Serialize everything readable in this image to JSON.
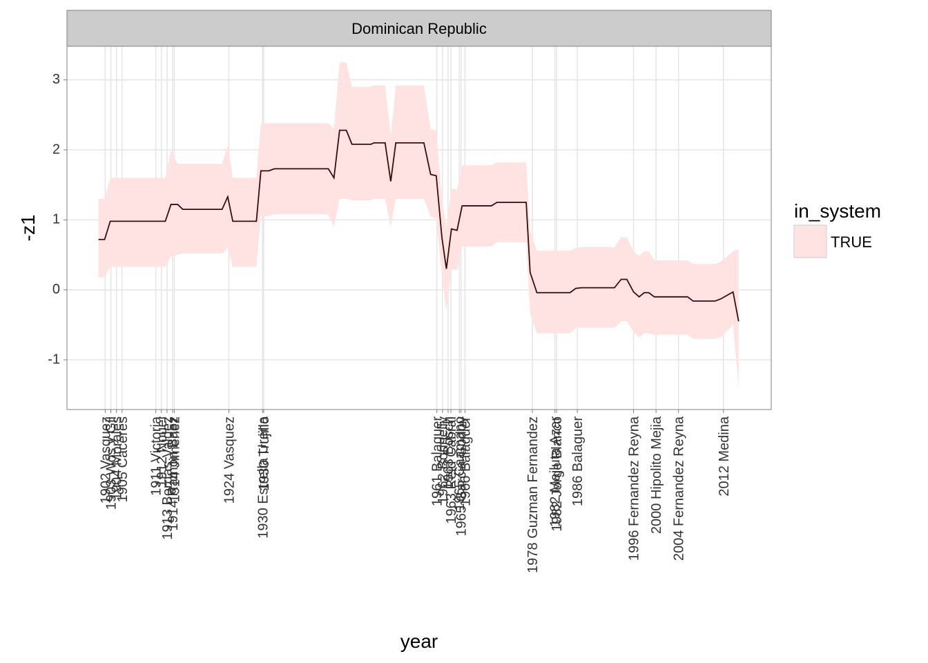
{
  "chart_data": {
    "type": "line",
    "strip": "Dominican Republic",
    "xlabel": "year",
    "ylabel": "-z1",
    "legend_title": "in_system",
    "grid": true,
    "xlim": [
      1895.2,
      2020.5
    ],
    "ylim": [
      -1.71,
      3.48
    ],
    "yticks": [
      -1,
      0,
      1,
      2,
      3
    ],
    "xticks": [
      {
        "value": 1902,
        "label": "1902 Vasquez"
      },
      {
        "value": 1903,
        "label": "1903 Wos y Gil"
      },
      {
        "value": 1904,
        "label": "1904 Morales"
      },
      {
        "value": 1905,
        "label": "1905 Caceres"
      },
      {
        "value": 1911,
        "label": "1911 Victoria"
      },
      {
        "value": 1912,
        "label": "1912 Nouel"
      },
      {
        "value": 1913,
        "label": "1913 Bordas Valdez"
      },
      {
        "value": 1914,
        "label": "1914 Ramon Baez"
      },
      {
        "value": 1914.3,
        "label": "1914 Jimenez"
      },
      {
        "value": 1924,
        "label": "1924 Vasquez"
      },
      {
        "value": 1930,
        "label": "1930 Estrella Urena"
      },
      {
        "value": 1930.2,
        "label": "1930 Trujillo"
      },
      {
        "value": 1961,
        "label": "1961 Balaguer"
      },
      {
        "value": 1962,
        "label": "1962 Bonnelly"
      },
      {
        "value": 1963,
        "label": "1963 Bosch"
      },
      {
        "value": 1963.5,
        "label": "1963 Reid Cabral"
      },
      {
        "value": 1965,
        "label": "1965 Caamano"
      },
      {
        "value": 1965.3,
        "label": "1965 Garcia Godoy"
      },
      {
        "value": 1966,
        "label": "1966 Balaguer"
      },
      {
        "value": 1978,
        "label": "1978 Guzman Fernandez"
      },
      {
        "value": 1982,
        "label": "1982 Majluta Azar"
      },
      {
        "value": 1982.3,
        "label": "1982 Jorge Blanco"
      },
      {
        "value": 1986,
        "label": "1986 Balaguer"
      },
      {
        "value": 1996,
        "label": "1996 Fernandez Reyna"
      },
      {
        "value": 2000,
        "label": "2000 Hipolito Mejia"
      },
      {
        "value": 2004,
        "label": "2004 Fernandez Reyna"
      },
      {
        "value": 2012,
        "label": "2012 Medina"
      }
    ],
    "x": [
      1900.8,
      1901.9,
      1902.9,
      1912.7,
      1913.7,
      1914.9,
      1915.8,
      1922.8,
      1923.8,
      1924.7,
      1928.9,
      1929.7,
      1931.1,
      1932.1,
      1941.7,
      1942.7,
      1943.7,
      1944.9,
      1945.9,
      1949.3,
      1949.8,
      1951.8,
      1952.8,
      1953.7,
      1958.7,
      1959.9,
      1960.9,
      1961.9,
      1962.7,
      1963.6,
      1964.6,
      1965.5,
      1970.7,
      1971.7,
      1976.9,
      1977.6,
      1978.8,
      1984.7,
      1985.7,
      1986.7,
      1992.6,
      1993.8,
      1994.8,
      1996.0,
      1997.0,
      1997.9,
      1998.7,
      1999.7,
      2005.6,
      2006.6,
      2010.5,
      2011.5,
      2013.7,
      2014.7
    ],
    "series": [
      {
        "name": "TRUE",
        "color": "#3a0a0a",
        "fill": "#ffe3e3",
        "values": [
          0.72,
          0.72,
          0.98,
          0.98,
          1.22,
          1.22,
          1.15,
          1.15,
          1.33,
          0.98,
          0.98,
          1.7,
          1.7,
          1.73,
          1.73,
          1.6,
          2.28,
          2.28,
          2.08,
          2.08,
          2.1,
          2.1,
          1.55,
          2.1,
          2.1,
          1.65,
          1.63,
          0.75,
          0.3,
          0.87,
          0.85,
          1.2,
          1.2,
          1.25,
          1.25,
          0.25,
          -0.04,
          -0.04,
          0.02,
          0.03,
          0.03,
          0.15,
          0.15,
          -0.03,
          -0.1,
          -0.04,
          -0.04,
          -0.1,
          -0.1,
          -0.16,
          -0.16,
          -0.13,
          -0.03,
          -0.45
        ],
        "lower": [
          0.18,
          0.18,
          0.33,
          0.33,
          0.48,
          0.5,
          0.52,
          0.52,
          0.6,
          0.33,
          0.33,
          1.05,
          1.05,
          1.08,
          1.08,
          0.9,
          1.3,
          1.3,
          1.28,
          1.28,
          1.3,
          1.3,
          0.9,
          1.3,
          1.3,
          1.05,
          1.02,
          0.2,
          -0.3,
          0.3,
          0.28,
          0.62,
          0.62,
          0.68,
          0.68,
          -0.35,
          -0.62,
          -0.62,
          -0.55,
          -0.54,
          -0.54,
          -0.45,
          -0.45,
          -0.6,
          -0.68,
          -0.62,
          -0.62,
          -0.64,
          -0.64,
          -0.7,
          -0.7,
          -0.68,
          -0.5,
          -1.38
        ],
        "upper": [
          1.3,
          1.3,
          1.6,
          1.6,
          2.0,
          1.8,
          1.8,
          1.8,
          2.07,
          1.6,
          1.6,
          2.38,
          2.38,
          2.38,
          2.38,
          2.3,
          3.25,
          3.25,
          2.9,
          2.9,
          2.92,
          2.92,
          2.2,
          2.92,
          2.92,
          2.3,
          2.28,
          1.3,
          0.9,
          1.45,
          1.43,
          1.78,
          1.78,
          1.82,
          1.82,
          0.85,
          0.56,
          0.56,
          0.6,
          0.61,
          0.61,
          0.75,
          0.75,
          0.55,
          0.48,
          0.55,
          0.55,
          0.42,
          0.42,
          0.37,
          0.37,
          0.4,
          0.55,
          0.58
        ]
      }
    ]
  }
}
